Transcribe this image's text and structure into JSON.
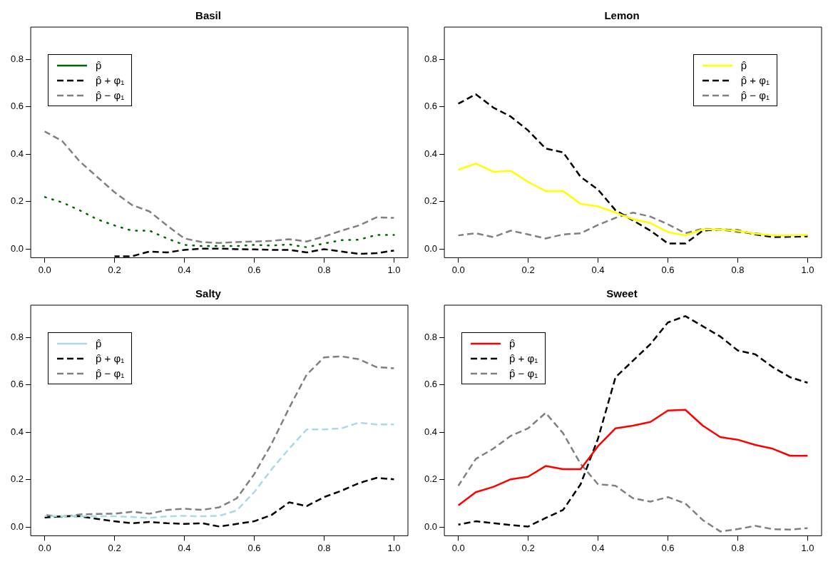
{
  "chart_data": [
    {
      "type": "line",
      "title": "Basil",
      "x": [
        0,
        0.05,
        0.1,
        0.15,
        0.2,
        0.25,
        0.3,
        0.35,
        0.4,
        0.45,
        0.5,
        0.55,
        0.6,
        0.65,
        0.7,
        0.75,
        0.8,
        0.85,
        0.9,
        0.95,
        1.0
      ],
      "xlim": [
        -0.04,
        1.04
      ],
      "ylim": [
        -0.036,
        0.936
      ],
      "xticks": [
        {
          "value": 0,
          "label": "0.0"
        },
        {
          "value": 0.2,
          "label": "0.2"
        },
        {
          "value": 0.4,
          "label": "0.4"
        },
        {
          "value": 0.6,
          "label": "0.6"
        },
        {
          "value": 0.8,
          "label": "0.8"
        },
        {
          "value": 1,
          "label": "1.0"
        }
      ],
      "yticks": [
        {
          "value": 0,
          "label": "0.0"
        },
        {
          "value": 0.2,
          "label": "0.2"
        },
        {
          "value": 0.4,
          "label": "0.4"
        },
        {
          "value": 0.6,
          "label": "0.6"
        },
        {
          "value": 0.8,
          "label": "0.8"
        }
      ],
      "grid": false,
      "legend": "top left",
      "marker": "none",
      "series": [
        {
          "name": "p̂",
          "color": "#006400",
          "line_style": "dotted",
          "values": [
            0.22,
            0.197,
            0.164,
            0.126,
            0.1,
            0.078,
            0.078,
            0.045,
            0.018,
            0.013,
            0.013,
            0.013,
            0.018,
            0.015,
            0.02,
            0.008,
            0.024,
            0.038,
            0.04,
            0.06,
            0.06
          ]
        },
        {
          "name": "p̂ + φ₁",
          "color": "#000000",
          "line_style": "dashed",
          "values": [
            null,
            null,
            null,
            null,
            -0.03,
            -0.03,
            -0.01,
            -0.014,
            -0.003,
            0.002,
            0.002,
            0,
            -0.001,
            -0.003,
            -0.003,
            -0.014,
            0,
            -0.01,
            -0.02,
            -0.017,
            -0.006
          ]
        },
        {
          "name": "p̂ − φ₁",
          "color": "#808080",
          "line_style": "dashed",
          "values": [
            0.496,
            0.456,
            0.37,
            0.305,
            0.24,
            0.186,
            0.159,
            0.1,
            0.045,
            0.03,
            0.026,
            0.03,
            0.032,
            0.035,
            0.042,
            0.032,
            0.053,
            0.078,
            0.1,
            0.134,
            0.132
          ]
        }
      ]
    },
    {
      "type": "line",
      "title": "Lemon",
      "x": [
        0,
        0.05,
        0.1,
        0.15,
        0.2,
        0.25,
        0.3,
        0.35,
        0.4,
        0.45,
        0.5,
        0.55,
        0.6,
        0.65,
        0.7,
        0.75,
        0.8,
        0.85,
        0.9,
        0.95,
        1.0
      ],
      "xlim": [
        -0.04,
        1.04
      ],
      "ylim": [
        -0.036,
        0.936
      ],
      "xticks": [
        {
          "value": 0,
          "label": "0.0"
        },
        {
          "value": 0.2,
          "label": "0.2"
        },
        {
          "value": 0.4,
          "label": "0.4"
        },
        {
          "value": 0.6,
          "label": "0.6"
        },
        {
          "value": 0.8,
          "label": "0.8"
        },
        {
          "value": 1,
          "label": "1.0"
        }
      ],
      "yticks": [
        {
          "value": 0,
          "label": "0.0"
        },
        {
          "value": 0.2,
          "label": "0.2"
        },
        {
          "value": 0.4,
          "label": "0.4"
        },
        {
          "value": 0.6,
          "label": "0.6"
        },
        {
          "value": 0.8,
          "label": "0.8"
        }
      ],
      "grid": false,
      "legend": "top right",
      "marker": "none",
      "series": [
        {
          "name": "p̂",
          "color": "#ffff00",
          "line_style": "solid",
          "values": [
            0.335,
            0.361,
            0.326,
            0.33,
            0.283,
            0.245,
            0.245,
            0.191,
            0.18,
            0.154,
            0.126,
            0.11,
            0.072,
            0.058,
            0.083,
            0.083,
            0.078,
            0.065,
            0.058,
            0.058,
            0.06
          ]
        },
        {
          "name": "p̂ + φ₁",
          "color": "#000000",
          "line_style": "dashed",
          "values": [
            0.613,
            0.653,
            0.597,
            0.559,
            0.5,
            0.424,
            0.408,
            0.305,
            0.251,
            0.164,
            0.121,
            0.078,
            0.024,
            0.024,
            0.078,
            0.083,
            0.08,
            0.062,
            0.051,
            0.052,
            0.054
          ]
        },
        {
          "name": "p̂ − φ₁",
          "color": "#808080",
          "line_style": "dashed",
          "values": [
            0.058,
            0.067,
            0.051,
            0.078,
            0.062,
            0.045,
            0.062,
            0.067,
            0.102,
            0.132,
            0.154,
            0.137,
            0.105,
            0.067,
            0.086,
            0.083,
            0.072,
            0.067,
            0.056,
            0.058,
            0.058
          ]
        }
      ]
    },
    {
      "type": "line",
      "title": "Salty",
      "x": [
        0,
        0.05,
        0.1,
        0.15,
        0.2,
        0.25,
        0.3,
        0.35,
        0.4,
        0.45,
        0.5,
        0.55,
        0.6,
        0.65,
        0.7,
        0.75,
        0.8,
        0.85,
        0.9,
        0.95,
        1.0
      ],
      "xlim": [
        -0.04,
        1.04
      ],
      "ylim": [
        -0.036,
        0.936
      ],
      "xticks": [
        {
          "value": 0,
          "label": "0.0"
        },
        {
          "value": 0.2,
          "label": "0.2"
        },
        {
          "value": 0.4,
          "label": "0.4"
        },
        {
          "value": 0.6,
          "label": "0.6"
        },
        {
          "value": 0.8,
          "label": "0.8"
        },
        {
          "value": 1,
          "label": "1.0"
        }
      ],
      "yticks": [
        {
          "value": 0,
          "label": "0.0"
        },
        {
          "value": 0.2,
          "label": "0.2"
        },
        {
          "value": 0.4,
          "label": "0.4"
        },
        {
          "value": 0.6,
          "label": "0.6"
        },
        {
          "value": 0.8,
          "label": "0.8"
        }
      ],
      "grid": false,
      "legend": "top left",
      "marker": "none",
      "series": [
        {
          "name": "p̂",
          "color": "#add8e6",
          "line_style": "dashed",
          "values": [
            0.047,
            0.046,
            0.046,
            0.046,
            0.046,
            0.043,
            0.039,
            0.046,
            0.048,
            0.046,
            0.048,
            0.071,
            0.148,
            0.245,
            0.331,
            0.412,
            0.412,
            0.417,
            0.441,
            0.433,
            0.433
          ]
        },
        {
          "name": "p̂ + φ₁",
          "color": "#000000",
          "line_style": "dashed",
          "values": [
            0.041,
            0.046,
            0.046,
            0.035,
            0.025,
            0.017,
            0.022,
            0.017,
            0.014,
            0.017,
            0.003,
            0.014,
            0.025,
            0.052,
            0.105,
            0.089,
            0.127,
            0.154,
            0.186,
            0.208,
            0.202
          ]
        },
        {
          "name": "p̂ − φ₁",
          "color": "#808080",
          "line_style": "dashed",
          "values": [
            0.052,
            0.043,
            0.054,
            0.056,
            0.057,
            0.065,
            0.057,
            0.073,
            0.078,
            0.073,
            0.084,
            0.122,
            0.224,
            0.353,
            0.503,
            0.643,
            0.716,
            0.72,
            0.708,
            0.675,
            0.67
          ]
        }
      ]
    },
    {
      "type": "line",
      "title": "Sweet",
      "x": [
        0,
        0.05,
        0.1,
        0.15,
        0.2,
        0.25,
        0.3,
        0.35,
        0.4,
        0.45,
        0.5,
        0.55,
        0.6,
        0.65,
        0.7,
        0.75,
        0.8,
        0.85,
        0.9,
        0.95,
        1.0
      ],
      "xlim": [
        -0.04,
        1.04
      ],
      "ylim": [
        -0.036,
        0.936
      ],
      "xticks": [
        {
          "value": 0,
          "label": "0.0"
        },
        {
          "value": 0.2,
          "label": "0.2"
        },
        {
          "value": 0.4,
          "label": "0.4"
        },
        {
          "value": 0.6,
          "label": "0.6"
        },
        {
          "value": 0.8,
          "label": "0.8"
        },
        {
          "value": 1,
          "label": "1.0"
        }
      ],
      "yticks": [
        {
          "value": 0,
          "label": "0.0"
        },
        {
          "value": 0.2,
          "label": "0.2"
        },
        {
          "value": 0.4,
          "label": "0.4"
        },
        {
          "value": 0.6,
          "label": "0.6"
        },
        {
          "value": 0.8,
          "label": "0.8"
        }
      ],
      "grid": false,
      "legend": "top left",
      "marker": "none",
      "series": [
        {
          "name": "p̂",
          "color": "#ff0000",
          "line_style": "solid",
          "values": [
            0.092,
            0.148,
            0.17,
            0.202,
            0.213,
            0.258,
            0.245,
            0.245,
            0.342,
            0.417,
            0.428,
            0.444,
            0.492,
            0.495,
            0.428,
            0.38,
            0.369,
            0.347,
            0.331,
            0.301,
            0.301
          ]
        },
        {
          "name": "p̂ + φ₁",
          "color": "#000000",
          "line_style": "dashed",
          "values": [
            0.011,
            0.025,
            0.017,
            0.009,
            0.003,
            0.039,
            0.073,
            0.181,
            0.374,
            0.632,
            0.702,
            0.772,
            0.863,
            0.89,
            0.847,
            0.804,
            0.745,
            0.729,
            0.675,
            0.632,
            0.609
          ]
        },
        {
          "name": "p̂ − φ₁",
          "color": "#808080",
          "line_style": "dashed",
          "values": [
            0.175,
            0.288,
            0.331,
            0.385,
            0.417,
            0.482,
            0.396,
            0.267,
            0.181,
            0.175,
            0.122,
            0.108,
            0.127,
            0.1,
            0.03,
            -0.018,
            -0.008,
            0.006,
            -0.008,
            -0.01,
            -0.004
          ]
        }
      ]
    }
  ]
}
